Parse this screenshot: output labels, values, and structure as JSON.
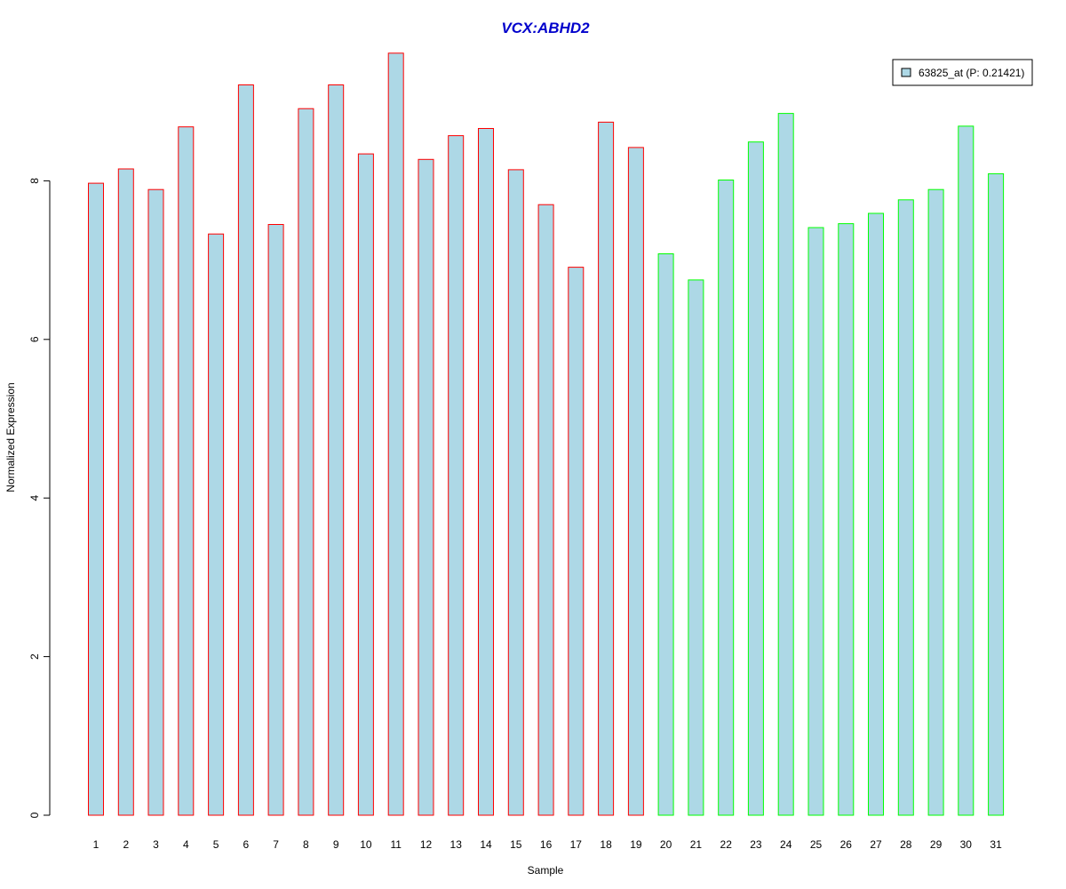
{
  "chart_data": {
    "type": "bar",
    "title": "VCX:ABHD2",
    "xlabel": "Sample",
    "ylabel": "Normalized Expression",
    "ylim": [
      0,
      9.6
    ],
    "yticks": [
      "0",
      "2",
      "4",
      "6",
      "8"
    ],
    "categories": [
      "1",
      "2",
      "3",
      "4",
      "5",
      "6",
      "7",
      "8",
      "9",
      "10",
      "11",
      "12",
      "13",
      "14",
      "15",
      "16",
      "17",
      "18",
      "19",
      "20",
      "21",
      "22",
      "23",
      "24",
      "25",
      "26",
      "27",
      "28",
      "29",
      "30",
      "31"
    ],
    "values": [
      7.97,
      8.15,
      7.89,
      8.68,
      7.33,
      9.21,
      7.45,
      8.91,
      9.21,
      8.34,
      9.61,
      8.27,
      8.57,
      8.66,
      8.14,
      7.7,
      6.91,
      8.74,
      8.42,
      7.08,
      6.75,
      8.01,
      8.49,
      8.85,
      7.41,
      7.46,
      7.59,
      7.76,
      7.89,
      8.69,
      8.09
    ],
    "fill_color": "#add8e6",
    "border_colors": [
      "#ff0000",
      "#ff0000",
      "#ff0000",
      "#ff0000",
      "#ff0000",
      "#ff0000",
      "#ff0000",
      "#ff0000",
      "#ff0000",
      "#ff0000",
      "#ff0000",
      "#ff0000",
      "#ff0000",
      "#ff0000",
      "#ff0000",
      "#ff0000",
      "#ff0000",
      "#ff0000",
      "#ff0000",
      "#00ff00",
      "#00ff00",
      "#00ff00",
      "#00ff00",
      "#00ff00",
      "#00ff00",
      "#00ff00",
      "#00ff00",
      "#00ff00",
      "#00ff00",
      "#00ff00",
      "#00ff00"
    ],
    "title_color": "#0000cc",
    "legend": {
      "position": "top-right",
      "entries": [
        {
          "label": "63825_at (P: 0.21421)",
          "color": "#add8e6"
        }
      ]
    },
    "grid": false
  }
}
